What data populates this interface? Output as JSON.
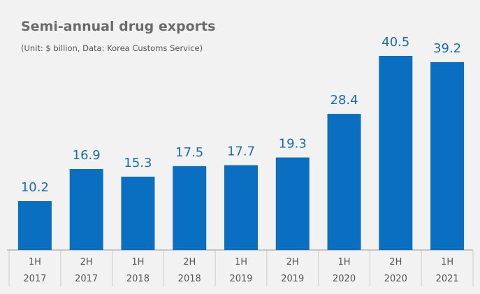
{
  "chart_data": {
    "type": "bar",
    "title": "Semi-annual drug exports",
    "subtitle": "(Unit: $ billion, Data: Korea Customs Service)",
    "categories": [
      "1H 2017",
      "2H 2017",
      "1H 2018",
      "2H 2018",
      "1H 2019",
      "2H 2019",
      "1H 2020",
      "2H 2020",
      "1H 2021"
    ],
    "values": [
      10.2,
      16.9,
      15.3,
      17.5,
      17.7,
      19.3,
      28.4,
      40.5,
      39.2
    ],
    "color": "#0b6fc1",
    "label_color": "#1a6cb0"
  }
}
